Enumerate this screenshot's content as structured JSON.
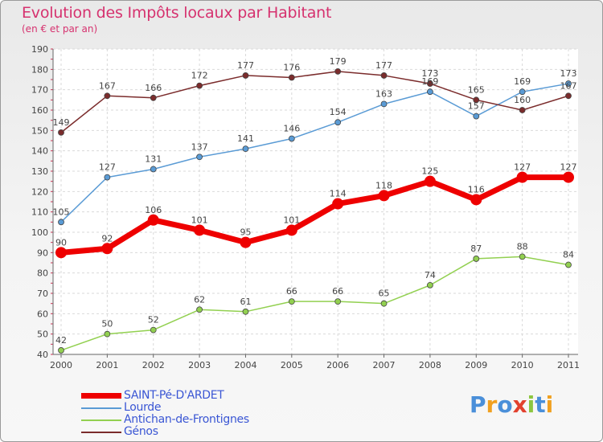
{
  "header": {
    "title": "Evolution des Impôts locaux par Habitant",
    "subtitle": "(en € et par an)"
  },
  "logo": {
    "text": "Proxiti"
  },
  "chart_data": {
    "type": "line",
    "title": "Evolution des Impôts locaux par Habitant",
    "subtitle": "(en € et par an)",
    "xlabel": "",
    "ylabel": "",
    "x": [
      "2000",
      "2001",
      "2002",
      "2003",
      "2004",
      "2005",
      "2006",
      "2007",
      "2008",
      "2009",
      "2010",
      "2011"
    ],
    "ylim": [
      40,
      190
    ],
    "yticks": [
      40,
      50,
      60,
      70,
      80,
      90,
      100,
      110,
      120,
      130,
      140,
      150,
      160,
      170,
      180,
      190
    ],
    "grid": true,
    "legend_position": "bottom-left",
    "series": [
      {
        "name": "SAINT-Pé-D'ARDET",
        "color": "#ee0000",
        "emphasis": true,
        "values": [
          90,
          92,
          106,
          101,
          95,
          101,
          114,
          118,
          125,
          116,
          127,
          127
        ]
      },
      {
        "name": "Lourde",
        "color": "#5a9bd5",
        "emphasis": false,
        "values": [
          105,
          127,
          131,
          137,
          141,
          146,
          154,
          163,
          169,
          157,
          169,
          173
        ]
      },
      {
        "name": "Antichan-de-Frontignes",
        "color": "#92d050",
        "emphasis": false,
        "values": [
          42,
          50,
          52,
          62,
          61,
          66,
          66,
          65,
          74,
          87,
          88,
          84
        ]
      },
      {
        "name": "Génos",
        "color": "#7b2c2c",
        "emphasis": false,
        "values": [
          149,
          167,
          166,
          172,
          177,
          176,
          179,
          177,
          173,
          165,
          160,
          167
        ]
      }
    ]
  }
}
